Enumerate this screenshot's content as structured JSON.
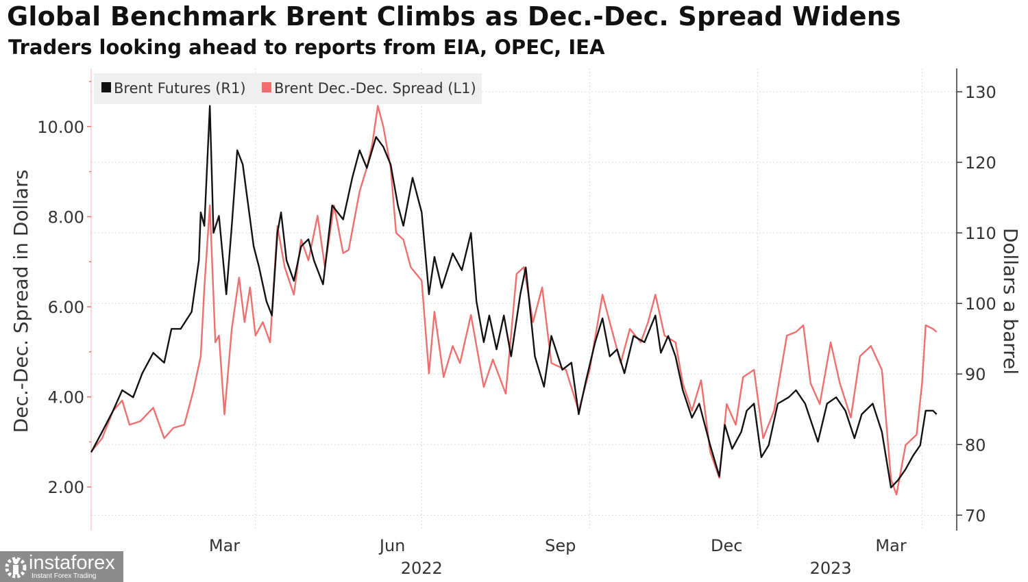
{
  "chart_data": {
    "type": "line",
    "title": "Global Benchmark Brent Climbs as Dec.-Dec. Spread Widens",
    "subtitle": "Traders looking ahead to reports from EIA, OPEC, IEA",
    "ylabel_left": "Dec.-Dec. Spread in Dollars",
    "ylabel_right": "Dollars a barrel",
    "xlim": [
      "2022-01-01",
      "2023-04-20"
    ],
    "ylim_left": [
      1.03,
      11.29
    ],
    "ylim_right": [
      67.8,
      133.3
    ],
    "left_ticks": [
      "2.00",
      "4.00",
      "6.00",
      "8.00",
      "10.00"
    ],
    "right_ticks": [
      "70",
      "80",
      "90",
      "100",
      "110",
      "120",
      "130"
    ],
    "x_ticks": [
      {
        "label": "Mar",
        "date": "2022-03-15"
      },
      {
        "label": "Jun",
        "date": "2022-06-15"
      },
      {
        "label": "Sep",
        "date": "2022-09-15"
      },
      {
        "label": "Dec",
        "date": "2022-12-15"
      },
      {
        "label": "Mar",
        "date": "2023-03-15"
      }
    ],
    "x_year_labels": [
      {
        "label": "2022",
        "date": "2022-07-01"
      },
      {
        "label": "2023",
        "date": "2023-02-10"
      }
    ],
    "x_gridlines": [
      "2022-04-01",
      "2022-07-01",
      "2022-10-01",
      "2023-01-01",
      "2023-04-01"
    ],
    "grid": true,
    "legend_position": "top-left",
    "series": [
      {
        "name": "Brent Futures (R1)",
        "axis": "right",
        "color": "#111111",
        "points": [
          [
            "2022-01-01",
            78.9
          ],
          [
            "2022-01-07",
            81.8
          ],
          [
            "2022-01-13",
            84.8
          ],
          [
            "2022-01-18",
            87.7
          ],
          [
            "2022-01-24",
            86.7
          ],
          [
            "2022-01-29",
            90.1
          ],
          [
            "2022-02-04",
            93.0
          ],
          [
            "2022-02-10",
            91.6
          ],
          [
            "2022-02-14",
            96.4
          ],
          [
            "2022-02-19",
            96.4
          ],
          [
            "2022-02-25",
            98.8
          ],
          [
            "2022-03-01",
            106.1
          ],
          [
            "2022-03-02",
            112.9
          ],
          [
            "2022-03-04",
            111.0
          ],
          [
            "2022-03-07",
            128.0
          ],
          [
            "2022-03-09",
            110.0
          ],
          [
            "2022-03-12",
            112.4
          ],
          [
            "2022-03-16",
            101.3
          ],
          [
            "2022-03-19",
            111.0
          ],
          [
            "2022-03-22",
            121.7
          ],
          [
            "2022-03-25",
            119.7
          ],
          [
            "2022-03-28",
            113.9
          ],
          [
            "2022-03-31",
            108.1
          ],
          [
            "2022-04-03",
            105.1
          ],
          [
            "2022-04-07",
            100.3
          ],
          [
            "2022-04-10",
            98.3
          ],
          [
            "2022-04-13",
            110.0
          ],
          [
            "2022-04-15",
            112.9
          ],
          [
            "2022-04-18",
            106.1
          ],
          [
            "2022-04-22",
            103.2
          ],
          [
            "2022-04-26",
            108.1
          ],
          [
            "2022-04-30",
            109.1
          ],
          [
            "2022-05-03",
            106.1
          ],
          [
            "2022-05-08",
            102.7
          ],
          [
            "2022-05-13",
            113.9
          ],
          [
            "2022-05-19",
            111.9
          ],
          [
            "2022-05-24",
            117.8
          ],
          [
            "2022-05-28",
            121.7
          ],
          [
            "2022-06-01",
            119.2
          ],
          [
            "2022-06-06",
            123.6
          ],
          [
            "2022-06-10",
            122.2
          ],
          [
            "2022-06-14",
            119.7
          ],
          [
            "2022-06-18",
            113.9
          ],
          [
            "2022-06-21",
            111.0
          ],
          [
            "2022-06-26",
            117.8
          ],
          [
            "2022-07-01",
            112.9
          ],
          [
            "2022-07-05",
            101.3
          ],
          [
            "2022-07-08",
            106.6
          ],
          [
            "2022-07-12",
            102.2
          ],
          [
            "2022-07-18",
            107.1
          ],
          [
            "2022-07-23",
            104.7
          ],
          [
            "2022-07-28",
            110.0
          ],
          [
            "2022-07-31",
            100.3
          ],
          [
            "2022-08-04",
            94.5
          ],
          [
            "2022-08-07",
            98.3
          ],
          [
            "2022-08-11",
            93.5
          ],
          [
            "2022-08-15",
            98.3
          ],
          [
            "2022-08-19",
            92.5
          ],
          [
            "2022-08-24",
            101.3
          ],
          [
            "2022-08-27",
            105.1
          ],
          [
            "2022-09-01",
            92.5
          ],
          [
            "2022-09-06",
            88.2
          ],
          [
            "2022-09-10",
            95.4
          ],
          [
            "2022-09-16",
            90.6
          ],
          [
            "2022-09-21",
            91.6
          ],
          [
            "2022-09-25",
            84.3
          ],
          [
            "2022-09-29",
            89.1
          ],
          [
            "2022-10-04",
            94.5
          ],
          [
            "2022-10-08",
            97.9
          ],
          [
            "2022-10-12",
            92.5
          ],
          [
            "2022-10-16",
            93.5
          ],
          [
            "2022-10-20",
            90.1
          ],
          [
            "2022-10-25",
            95.4
          ],
          [
            "2022-10-31",
            94.5
          ],
          [
            "2022-11-06",
            98.3
          ],
          [
            "2022-11-09",
            93.0
          ],
          [
            "2022-11-13",
            95.4
          ],
          [
            "2022-11-17",
            92.5
          ],
          [
            "2022-11-21",
            87.7
          ],
          [
            "2022-11-26",
            83.8
          ],
          [
            "2022-11-30",
            85.8
          ],
          [
            "2022-12-06",
            79.9
          ],
          [
            "2022-12-11",
            75.5
          ],
          [
            "2022-12-14",
            82.8
          ],
          [
            "2022-12-18",
            79.4
          ],
          [
            "2022-12-23",
            81.8
          ],
          [
            "2022-12-26",
            84.8
          ],
          [
            "2022-12-30",
            85.8
          ],
          [
            "2023-01-03",
            78.2
          ],
          [
            "2023-01-07",
            79.9
          ],
          [
            "2023-01-12",
            85.8
          ],
          [
            "2023-01-18",
            86.7
          ],
          [
            "2023-01-22",
            87.7
          ],
          [
            "2023-01-27",
            85.8
          ],
          [
            "2023-02-03",
            80.4
          ],
          [
            "2023-02-08",
            85.8
          ],
          [
            "2023-02-13",
            86.7
          ],
          [
            "2023-02-18",
            84.8
          ],
          [
            "2023-02-23",
            80.9
          ],
          [
            "2023-02-27",
            84.3
          ],
          [
            "2023-03-05",
            85.8
          ],
          [
            "2023-03-10",
            81.8
          ],
          [
            "2023-03-15",
            73.9
          ],
          [
            "2023-03-19",
            75.0
          ],
          [
            "2023-03-23",
            76.5
          ],
          [
            "2023-03-27",
            78.4
          ],
          [
            "2023-03-31",
            79.9
          ],
          [
            "2023-04-03",
            84.8
          ],
          [
            "2023-04-07",
            84.8
          ],
          [
            "2023-04-09",
            84.3
          ]
        ]
      },
      {
        "name": "Brent Dec.-Dec. Spread (L1)",
        "axis": "left",
        "color": "#f06e6e",
        "points": [
          [
            "2022-01-01",
            2.78
          ],
          [
            "2022-01-07",
            3.08
          ],
          [
            "2022-01-13",
            3.69
          ],
          [
            "2022-01-18",
            3.92
          ],
          [
            "2022-01-22",
            3.38
          ],
          [
            "2022-01-28",
            3.46
          ],
          [
            "2022-02-04",
            3.76
          ],
          [
            "2022-02-10",
            3.08
          ],
          [
            "2022-02-15",
            3.31
          ],
          [
            "2022-02-21",
            3.38
          ],
          [
            "2022-02-26",
            4.14
          ],
          [
            "2022-03-02",
            4.9
          ],
          [
            "2022-03-04",
            6.43
          ],
          [
            "2022-03-07",
            8.25
          ],
          [
            "2022-03-10",
            5.21
          ],
          [
            "2022-03-12",
            5.36
          ],
          [
            "2022-03-15",
            3.61
          ],
          [
            "2022-03-19",
            5.51
          ],
          [
            "2022-03-23",
            6.65
          ],
          [
            "2022-03-26",
            5.66
          ],
          [
            "2022-03-29",
            6.43
          ],
          [
            "2022-04-01",
            5.36
          ],
          [
            "2022-04-05",
            5.66
          ],
          [
            "2022-04-09",
            5.21
          ],
          [
            "2022-04-13",
            7.79
          ],
          [
            "2022-04-17",
            6.88
          ],
          [
            "2022-04-22",
            6.27
          ],
          [
            "2022-04-26",
            7.49
          ],
          [
            "2022-04-30",
            7.03
          ],
          [
            "2022-05-05",
            8.02
          ],
          [
            "2022-05-09",
            6.88
          ],
          [
            "2022-05-14",
            8.25
          ],
          [
            "2022-05-19",
            7.19
          ],
          [
            "2022-05-22",
            7.26
          ],
          [
            "2022-05-28",
            8.56
          ],
          [
            "2022-06-01",
            9.09
          ],
          [
            "2022-06-04",
            9.62
          ],
          [
            "2022-06-07",
            10.46
          ],
          [
            "2022-06-10",
            10.0
          ],
          [
            "2022-06-14",
            9.09
          ],
          [
            "2022-06-17",
            7.64
          ],
          [
            "2022-06-21",
            7.49
          ],
          [
            "2022-06-25",
            6.88
          ],
          [
            "2022-07-01",
            6.58
          ],
          [
            "2022-07-05",
            4.52
          ],
          [
            "2022-07-08",
            5.89
          ],
          [
            "2022-07-13",
            4.44
          ],
          [
            "2022-07-18",
            5.13
          ],
          [
            "2022-07-22",
            4.75
          ],
          [
            "2022-07-28",
            5.82
          ],
          [
            "2022-08-04",
            4.22
          ],
          [
            "2022-08-09",
            4.83
          ],
          [
            "2022-08-16",
            4.07
          ],
          [
            "2022-08-22",
            6.73
          ],
          [
            "2022-08-26",
            6.88
          ],
          [
            "2022-08-31",
            5.66
          ],
          [
            "2022-09-05",
            6.43
          ],
          [
            "2022-09-10",
            4.75
          ],
          [
            "2022-09-18",
            4.6
          ],
          [
            "2022-09-25",
            3.69
          ],
          [
            "2022-10-01",
            4.6
          ],
          [
            "2022-10-08",
            6.27
          ],
          [
            "2022-10-12",
            5.66
          ],
          [
            "2022-10-18",
            4.75
          ],
          [
            "2022-10-23",
            5.51
          ],
          [
            "2022-10-29",
            5.21
          ],
          [
            "2022-11-02",
            5.66
          ],
          [
            "2022-11-06",
            6.27
          ],
          [
            "2022-11-11",
            5.36
          ],
          [
            "2022-11-17",
            5.21
          ],
          [
            "2022-11-21",
            4.3
          ],
          [
            "2022-11-26",
            3.69
          ],
          [
            "2022-12-01",
            4.37
          ],
          [
            "2022-12-06",
            2.78
          ],
          [
            "2022-12-11",
            2.2
          ],
          [
            "2022-12-15",
            3.84
          ],
          [
            "2022-12-20",
            3.38
          ],
          [
            "2022-12-24",
            4.44
          ],
          [
            "2022-12-30",
            4.6
          ],
          [
            "2023-01-04",
            3.08
          ],
          [
            "2023-01-10",
            3.69
          ],
          [
            "2023-01-17",
            5.36
          ],
          [
            "2023-01-22",
            5.44
          ],
          [
            "2023-01-26",
            5.59
          ],
          [
            "2023-01-30",
            4.3
          ],
          [
            "2023-02-04",
            3.84
          ],
          [
            "2023-02-10",
            5.21
          ],
          [
            "2023-02-15",
            4.3
          ],
          [
            "2023-02-21",
            3.54
          ],
          [
            "2023-02-26",
            4.9
          ],
          [
            "2023-03-04",
            5.13
          ],
          [
            "2023-03-10",
            4.6
          ],
          [
            "2023-03-15",
            2.17
          ],
          [
            "2023-03-18",
            1.83
          ],
          [
            "2023-03-23",
            2.93
          ],
          [
            "2023-03-29",
            3.16
          ],
          [
            "2023-04-01",
            4.3
          ],
          [
            "2023-04-03",
            5.59
          ],
          [
            "2023-04-07",
            5.51
          ],
          [
            "2023-04-09",
            5.44
          ]
        ]
      }
    ]
  },
  "watermark": {
    "name": "instaforex",
    "tagline": "Instant Forex Trading"
  }
}
